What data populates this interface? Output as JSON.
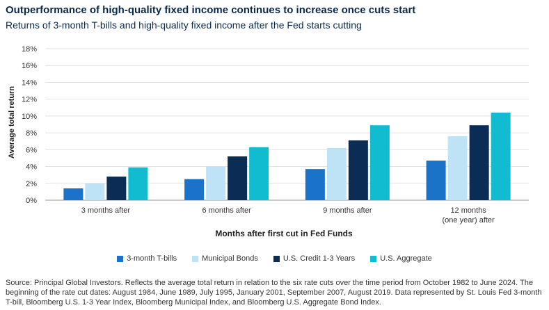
{
  "header": {
    "title": "Outperformance of high-quality fixed income continues to increase once cuts start",
    "subtitle": "Returns of 3-month T-bills and high-quality fixed income after the Fed starts cutting"
  },
  "chart_data": {
    "type": "bar",
    "xlabel": "Months after first cut in Fed Funds",
    "ylabel": "Average total return",
    "ylim": [
      0,
      18
    ],
    "yticks": [
      "0%",
      "2%",
      "4%",
      "6%",
      "8%",
      "10%",
      "12%",
      "14%",
      "16%",
      "18%"
    ],
    "categories": [
      "3 months after",
      "6 months after",
      "9 months after",
      "12 months (one year) after"
    ],
    "category_lines": [
      [
        "3 months after"
      ],
      [
        "6 months after"
      ],
      [
        "9 months after"
      ],
      [
        "12 months",
        "(one year) after"
      ]
    ],
    "series": [
      {
        "name": "3-month T-bills",
        "color": "#1a73c8",
        "values": [
          1.4,
          2.5,
          3.7,
          4.7
        ]
      },
      {
        "name": "Municipal Bonds",
        "color": "#bfe3f6",
        "values": [
          2.0,
          4.0,
          6.2,
          7.6
        ]
      },
      {
        "name": "U.S. Credit 1-3 Years",
        "color": "#0b2d55",
        "values": [
          2.8,
          5.2,
          7.1,
          8.9
        ]
      },
      {
        "name": "U.S. Aggregate",
        "color": "#12bcd0",
        "values": [
          3.9,
          6.3,
          8.9,
          10.4
        ]
      }
    ],
    "grid": true,
    "legend_position": "bottom"
  },
  "footer": {
    "source": "Source: Principal Global Investors. Reflects the average total return in relation to the six rate cuts over the time period from October 1982 to June 2024. The beginning of the rate cut dates: August 1984, June 1989, July 1995, January 2001, September 2007, August 2019. Data represented by St. Louis Fed 3-month T-bill, Bloomberg U.S. 1-3 Year Index, Bloomberg Municipal Index, and Bloomberg U.S. Aggregate Bond Index."
  }
}
